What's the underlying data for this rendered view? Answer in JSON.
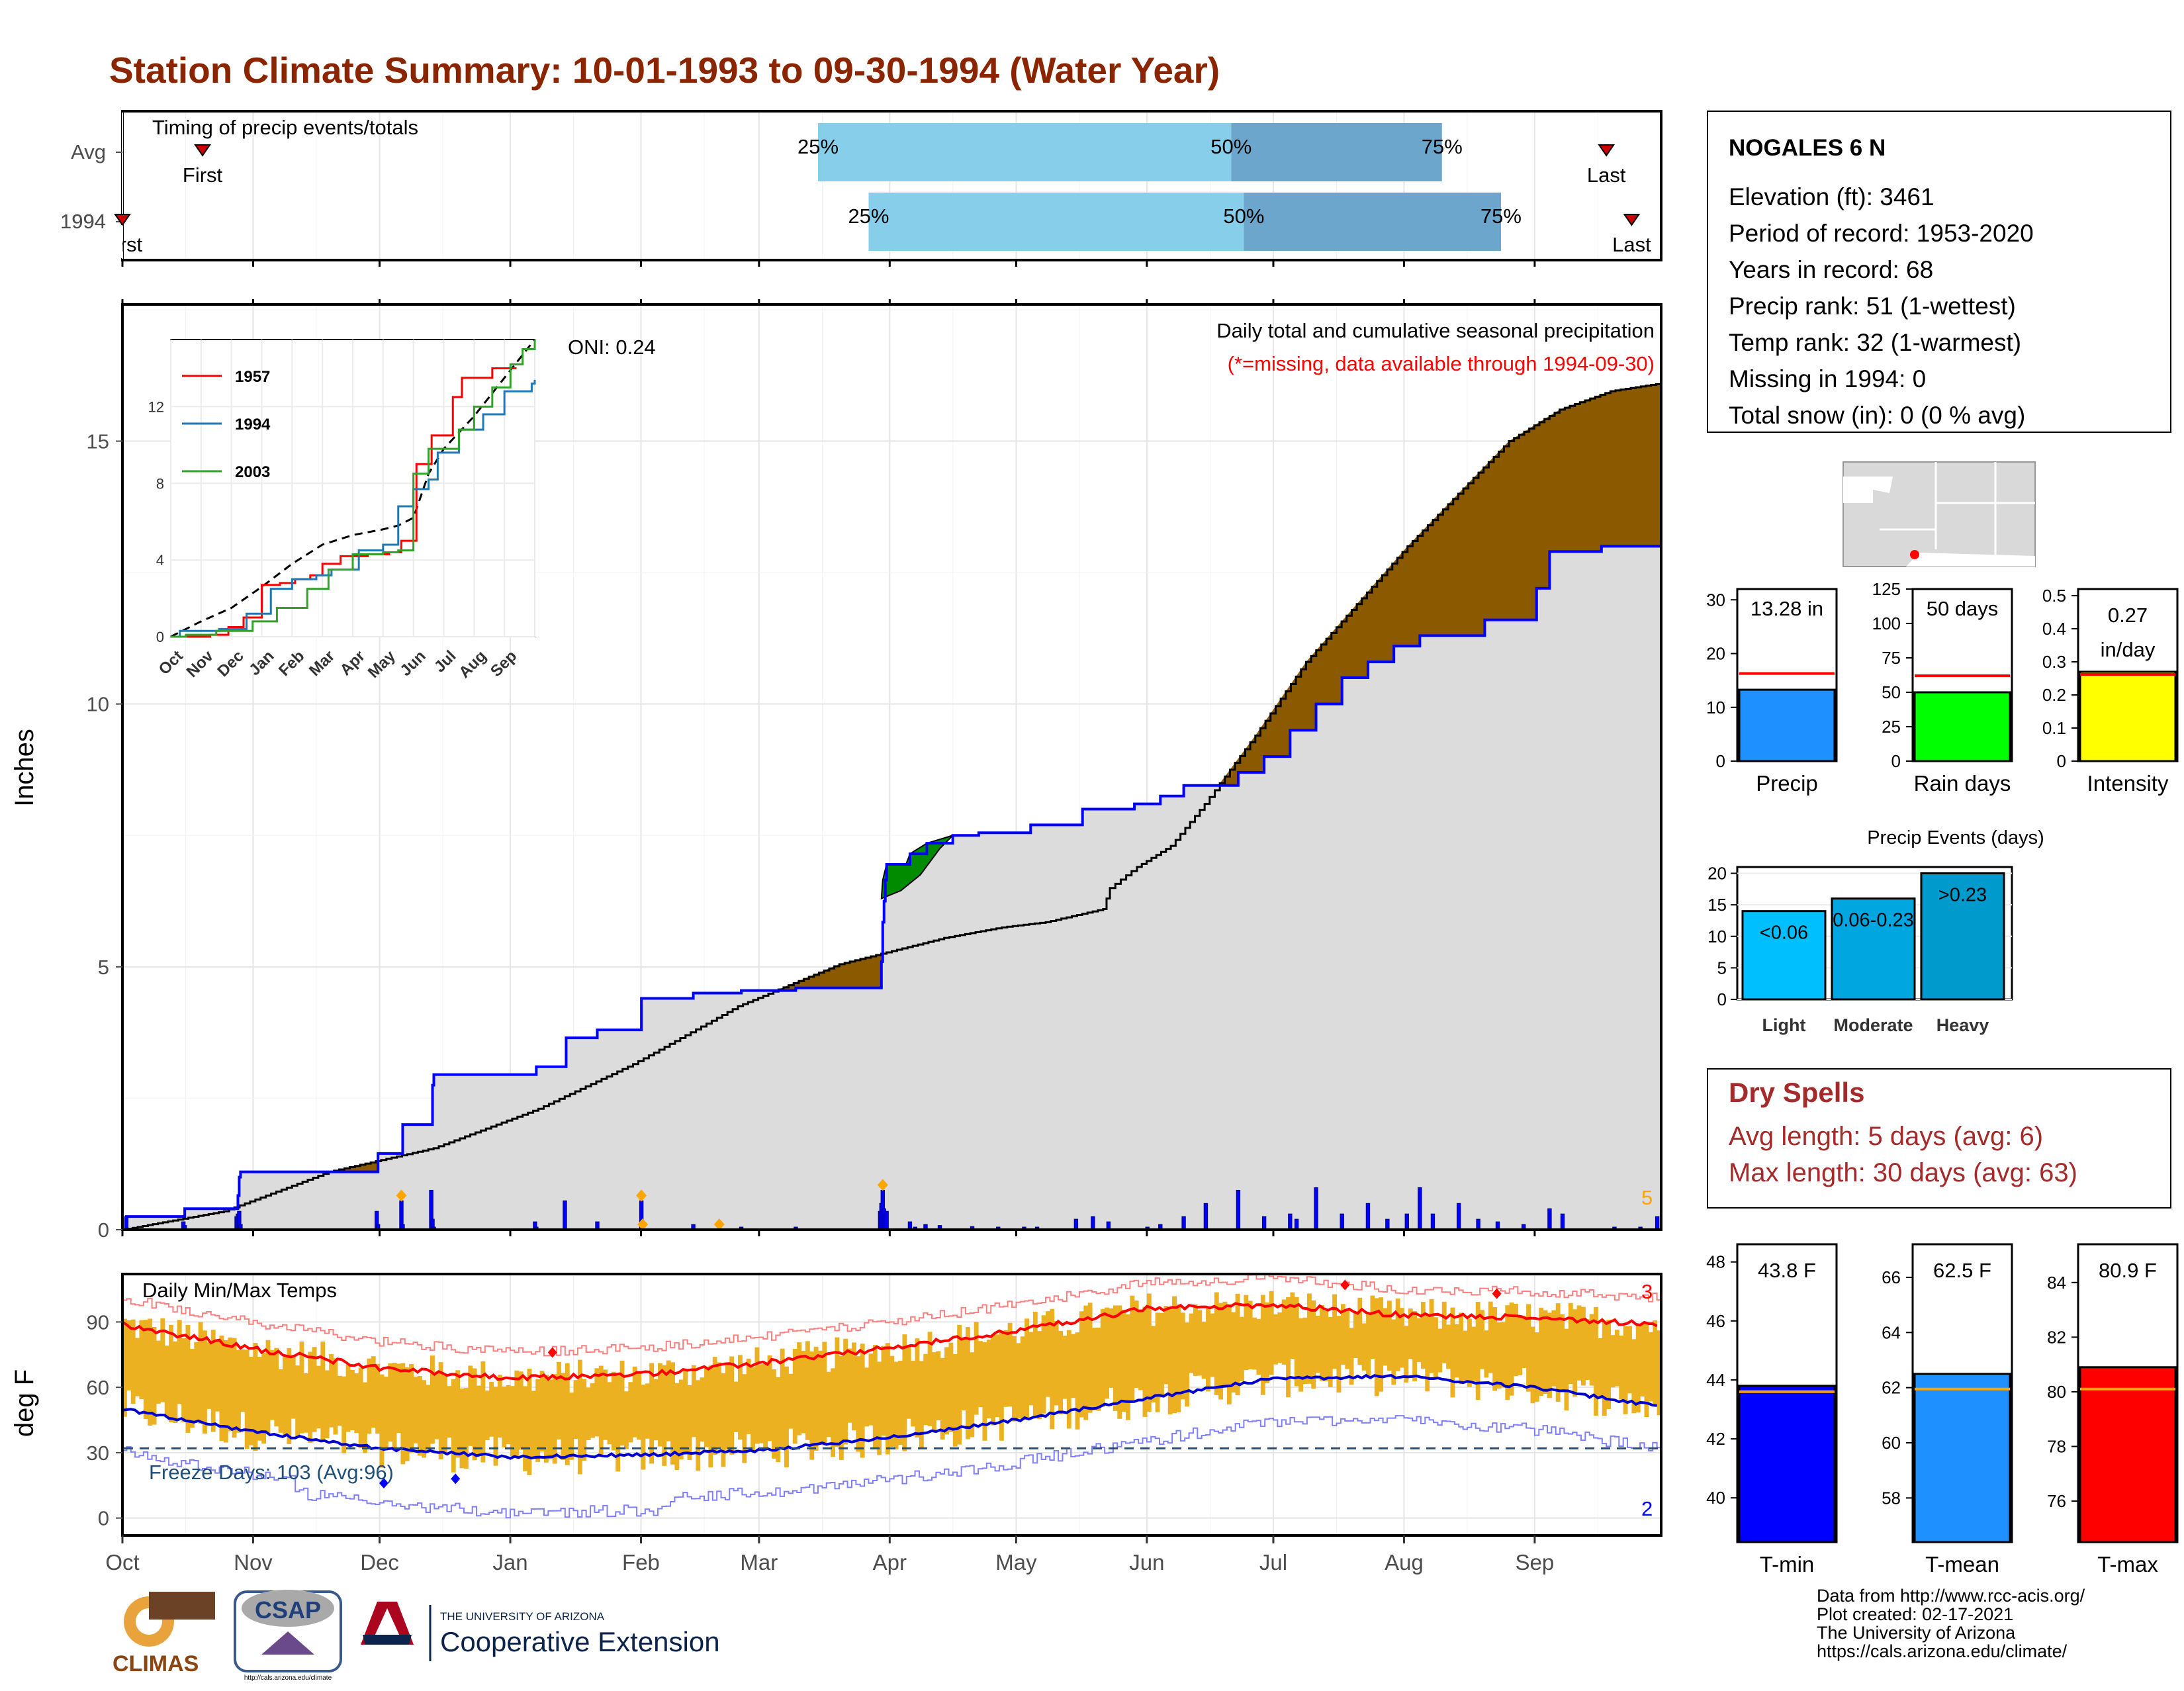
{
  "title": "Station Climate Summary: 10-01-1993 to 09-30-1994 (Water Year)",
  "colors": {
    "title": "#8B2500",
    "deficit_fill": "#8B5A00",
    "surplus_fill": "#008B00",
    "observed_fill": "#DCDCDC",
    "observed_line": "#0000FF",
    "daily_bar": "#0000FF",
    "temp_bar": "#EBB120",
    "pct_light": "#87CEEB",
    "pct_dark": "#6CA6CD",
    "red": "#FF0000",
    "dry_spells": "#A52A2A"
  },
  "months": [
    "Oct",
    "Nov",
    "Dec",
    "Jan",
    "Feb",
    "Mar",
    "Apr",
    "May",
    "Jun",
    "Jul",
    "Aug",
    "Sep"
  ],
  "timing": {
    "label": "Timing of precip events/totals",
    "rows": [
      {
        "name": "Avg",
        "first_label": "First",
        "last_label": "Last",
        "first_day": 19,
        "last_day": 352,
        "p25": 165,
        "p50": 263,
        "p75": 313
      },
      {
        "name": "1994",
        "first_label": "First",
        "last_label": "Last",
        "first_day": 0,
        "last_day": 358,
        "p25": 177,
        "p50": 266,
        "p75": 327
      }
    ],
    "pct_labels": [
      "25%",
      "50%",
      "75%"
    ]
  },
  "station": {
    "name": "NOGALES 6 N",
    "lines": [
      "Elevation (ft): 3461",
      "Period of record: 1953-2020",
      "Years in record: 68",
      "Precip rank: 51 (1-wettest)",
      "Temp rank: 32 (1-warmest)",
      "Missing in 1994: 0",
      "Total snow (in): 0 (0 % avg)"
    ]
  },
  "summary_bars": [
    {
      "name": "Precip",
      "value_label": "13.28 in",
      "value": 13.28,
      "avg": 16.3,
      "ymax": 32,
      "ticks": [
        0,
        10,
        20,
        30
      ],
      "fill": "#1E90FF"
    },
    {
      "name": "Rain days",
      "value_label": "50 days",
      "value": 50,
      "avg": 62,
      "ymax": 125,
      "ticks": [
        0,
        25,
        50,
        75,
        100,
        125
      ],
      "fill": "#00FF00"
    },
    {
      "name": "Intensity",
      "value_label": "0.27 in/day",
      "value": 0.27,
      "avg": 0.262,
      "ymax": 0.52,
      "ticks": [
        0.0,
        0.1,
        0.2,
        0.3,
        0.4,
        0.5
      ],
      "fill": "#FFFF00"
    }
  ],
  "events": {
    "title": "Precip Events (days)",
    "ticks": [
      0,
      5,
      10,
      15,
      20
    ],
    "ymax": 21,
    "bars": [
      {
        "name": "Light",
        "label": "<0.06",
        "value": 14,
        "fill": "#00BFFF"
      },
      {
        "name": "Moderate",
        "label": "0.06-0.23",
        "value": 16,
        "fill": "#00A6E0"
      },
      {
        "name": "Heavy",
        "label": ">0.23",
        "value": 20,
        "fill": "#009ACD"
      }
    ]
  },
  "dry_spells": {
    "title": "Dry Spells",
    "avg_line": "Avg length: 5 days (avg: 6)",
    "max_line": "Max length: 30 days (avg: 63)"
  },
  "temp_bars": [
    {
      "name": "T-min",
      "value_label": "43.8 F",
      "value": 43.8,
      "avg": 43.6,
      "ymin": 38.5,
      "ymax": 48.6,
      "ticks": [
        40,
        42,
        44,
        46,
        48
      ],
      "fill": "#0000FF"
    },
    {
      "name": "T-mean",
      "value_label": "62.5 F",
      "value": 62.5,
      "avg": 61.95,
      "ymin": 56.4,
      "ymax": 67.2,
      "ticks": [
        58,
        60,
        62,
        64,
        66
      ],
      "fill": "#1E90FF"
    },
    {
      "name": "T-max",
      "value_label": "80.9 F",
      "value": 80.9,
      "avg": 80.1,
      "ymin": 74.5,
      "ymax": 85.4,
      "ticks": [
        76,
        78,
        80,
        82,
        84
      ],
      "fill": "#FF0000"
    }
  ],
  "chart_data": [
    {
      "type": "area",
      "title": "Daily total and cumulative seasonal precipitation",
      "subtitle": "(*=missing, data available through 1994-09-30)",
      "ylabel": "Inches",
      "ylim": [
        0,
        17.6
      ],
      "yticks": [
        0,
        5,
        10,
        15
      ],
      "oni": "ONI: 0.24",
      "count_label": "5",
      "normal_cumulative": [
        [
          0,
          0
        ],
        [
          10,
          0.3
        ],
        [
          31,
          0.55
        ],
        [
          61,
          1.1
        ],
        [
          92,
          1.55
        ],
        [
          123,
          2.3
        ],
        [
          151,
          3.1
        ],
        [
          182,
          4.1
        ],
        [
          212,
          4.9
        ],
        [
          243,
          5.45
        ],
        [
          273,
          5.75
        ],
        [
          304,
          5.8
        ],
        [
          334,
          5.9
        ],
        [
          348,
          6.0
        ],
        [
          365,
          6.1
        ],
        [
          396,
          6.2
        ],
        [
          422,
          6.2
        ],
        [
          427,
          6.2
        ]
      ],
      "normal_cumulative_overall": [
        [
          0,
          0
        ],
        [
          30,
          0.35
        ],
        [
          61,
          1.1
        ],
        [
          92,
          1.55
        ],
        [
          123,
          2.3
        ],
        [
          151,
          3.15
        ],
        [
          182,
          4.25
        ],
        [
          212,
          5.05
        ],
        [
          243,
          5.55
        ],
        [
          260,
          5.75
        ],
        [
          273,
          5.85
        ],
        [
          290,
          6.1
        ],
        [
          292,
          6.5
        ],
        [
          300,
          6.9
        ],
        [
          310,
          7.3
        ],
        [
          320,
          8.1
        ],
        [
          335,
          9.4
        ],
        [
          350,
          10.8
        ],
        [
          365,
          11.9
        ],
        [
          380,
          13.0
        ],
        [
          395,
          14.0
        ],
        [
          410,
          15.0
        ],
        [
          425,
          15.6
        ],
        [
          440,
          15.95
        ],
        [
          455,
          16.1
        ]
      ],
      "observed_cumulative": [
        [
          0,
          0
        ],
        [
          3,
          0.25
        ],
        [
          47,
          0.25
        ],
        [
          48,
          0.4
        ],
        [
          88,
          0.4
        ],
        [
          89,
          0.65
        ],
        [
          90,
          1.0
        ],
        [
          91,
          1.1
        ],
        [
          196,
          1.1
        ],
        [
          197,
          1.45
        ],
        [
          215,
          1.45
        ],
        [
          216,
          2.0
        ],
        [
          238,
          2.0
        ],
        [
          239,
          2.75
        ],
        [
          240,
          2.95
        ],
        [
          318,
          2.95
        ],
        [
          319,
          3.1
        ],
        [
          341,
          3.1
        ],
        [
          342,
          3.65
        ],
        [
          365,
          3.65
        ],
        [
          366,
          3.8
        ],
        [
          399,
          3.8
        ],
        [
          400,
          4.4
        ],
        [
          439,
          4.4
        ],
        [
          440,
          4.5
        ],
        [
          476,
          4.5
        ],
        [
          477,
          4.55
        ],
        [
          518,
          4.55
        ],
        [
          519,
          4.6
        ],
        [
          584,
          4.6
        ],
        [
          585,
          5.1
        ],
        [
          586,
          5.85
        ],
        [
          587,
          6.25
        ],
        [
          588,
          6.65
        ],
        [
          589,
          6.95
        ],
        [
          604,
          6.95
        ],
        [
          607,
          7.15
        ],
        [
          620,
          7.35
        ],
        [
          640,
          7.5
        ],
        [
          660,
          7.55
        ],
        [
          700,
          7.7
        ],
        [
          740,
          8.0
        ],
        [
          780,
          8.1
        ],
        [
          800,
          8.25
        ],
        [
          818,
          8.45
        ],
        [
          860,
          8.7
        ],
        [
          880,
          9.0
        ],
        [
          900,
          9.5
        ],
        [
          920,
          10.0
        ],
        [
          940,
          10.5
        ],
        [
          960,
          10.8
        ],
        [
          980,
          11.1
        ],
        [
          1000,
          11.3
        ],
        [
          1050,
          11.6
        ],
        [
          1090,
          12.2
        ],
        [
          1100,
          12.9
        ],
        [
          1140,
          13.0
        ],
        [
          1186,
          13.1
        ]
      ],
      "daily_precip": [],
      "note_extra": []
    },
    {
      "type": "bar",
      "title": "Daily Min/Max Temps",
      "ylabel": "deg F",
      "ylim": [
        -8,
        112
      ],
      "yticks": [
        0,
        30,
        60,
        90
      ],
      "freeze_label": "Freeze Days: 103 (Avg:96)",
      "freeze_threshold": 32,
      "record_high_count": "3",
      "record_low_count": "2"
    }
  ],
  "footer": {
    "credits": [
      "Data from http://www.rcc-acis.org/",
      "Plot created: 02-17-2021",
      "The University of Arizona",
      "https://cals.arizona.edu/climate/"
    ],
    "logo_climas": "CLIMAS",
    "logo_csap": "CSAP",
    "logo_csap_url": "http://cals.arizona.edu/climate",
    "logo_ua_small": "THE UNIVERSITY OF ARIZONA",
    "logo_ua_big": "Cooperative Extension"
  },
  "inset": {
    "series": [
      {
        "name": "1957",
        "color": "#FF0000"
      },
      {
        "name": "1994",
        "color": "#1F78B4"
      },
      {
        "name": "2003",
        "color": "#33A02C"
      }
    ],
    "yticks": [
      0,
      4,
      8,
      12
    ],
    "ylim": [
      0,
      15.5
    ]
  }
}
